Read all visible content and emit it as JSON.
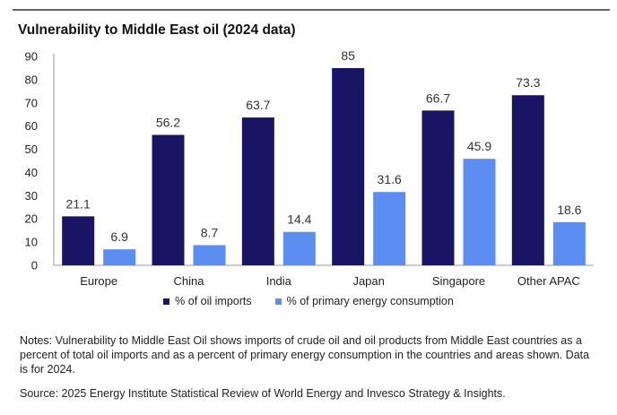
{
  "title": "Vulnerability to Middle East oil (2024 data)",
  "colors": {
    "series1": "#1a1464",
    "series2": "#5b8ef0",
    "axis": "#999999",
    "text": "#333333"
  },
  "chart_data": {
    "type": "bar",
    "title": "Vulnerability to Middle East oil (2024 data)",
    "categories": [
      "Europe",
      "China",
      "India",
      "Japan",
      "Singapore",
      "Other APAC"
    ],
    "series": [
      {
        "name": "% of oil imports",
        "values": [
          21.1,
          56.2,
          63.7,
          85,
          66.7,
          73.3
        ],
        "labels": [
          "21.1",
          "56.2",
          "63.7",
          "85",
          "66.7",
          "73.3"
        ]
      },
      {
        "name": "% of primary energy consumption",
        "values": [
          6.9,
          8.7,
          14.4,
          31.6,
          45.9,
          18.6
        ],
        "labels": [
          "6.9",
          "8.7",
          "14.4",
          "31.6",
          "45.9",
          "18.6"
        ]
      }
    ],
    "yticks": [
      "0",
      "10",
      "20",
      "30",
      "40",
      "50",
      "60",
      "70",
      "80",
      "90"
    ],
    "ylim": [
      0,
      90
    ],
    "xlabel": "",
    "ylabel": "",
    "legend_position": "bottom"
  },
  "legend": [
    {
      "label": "% of oil imports"
    },
    {
      "label": "% of primary energy consumption"
    }
  ],
  "notes": "Notes: Vulnerability to Middle East Oil shows imports of crude oil and oil products from Middle East countries as a percent of total oil imports and as a percent of primary energy consumption in the countries and areas shown. Data is for 2024.",
  "source": "Source: 2025 Energy Institute Statistical Review of World Energy and Invesco Strategy & Insights."
}
